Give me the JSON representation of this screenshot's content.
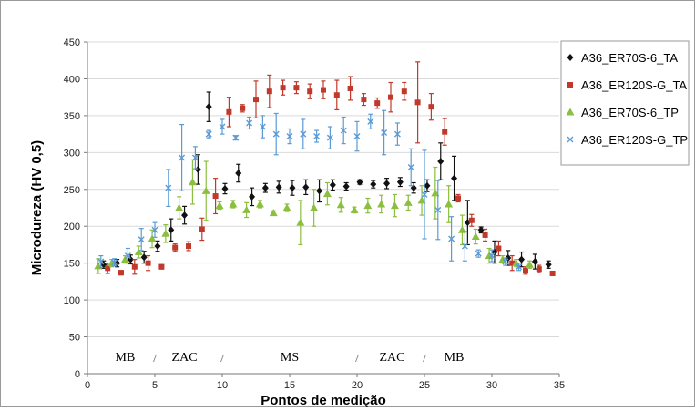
{
  "chart_data": {
    "type": "scatter",
    "title": "",
    "xlabel": "Pontos de medição",
    "ylabel": "Microdureza (HV 0,5)",
    "xlim": [
      0,
      35
    ],
    "ylim": [
      0,
      450
    ],
    "xticks": [
      0,
      5,
      10,
      15,
      20,
      25,
      30,
      35
    ],
    "yticks": [
      0,
      50,
      100,
      150,
      200,
      250,
      300,
      350,
      400,
      450
    ],
    "grid": "horizontal",
    "legend_position": "right",
    "regions": [
      {
        "label": "MB",
        "x": 2.8
      },
      {
        "label": "ZAC",
        "x": 7.2
      },
      {
        "label": "MS",
        "x": 15.0
      },
      {
        "label": "ZAC",
        "x": 22.6
      },
      {
        "label": "MB",
        "x": 27.2
      }
    ],
    "region_separators": [
      5,
      10,
      20,
      25
    ],
    "series": [
      {
        "name": "A36_ER70S-6_TA",
        "color": "#111111",
        "marker": "diamond",
        "points": [
          [
            1.2,
            148,
            5
          ],
          [
            2.2,
            150,
            5
          ],
          [
            3.2,
            155,
            6
          ],
          [
            4.2,
            158,
            8
          ],
          [
            5.2,
            173,
            7
          ],
          [
            6.2,
            195,
            15
          ],
          [
            7.2,
            215,
            12
          ],
          [
            8.2,
            277,
            20
          ],
          [
            9.0,
            362,
            20
          ],
          [
            10.2,
            251,
            7
          ],
          [
            11.2,
            272,
            12
          ],
          [
            12.2,
            240,
            12
          ],
          [
            13.2,
            252,
            6
          ],
          [
            14.2,
            253,
            8
          ],
          [
            15.2,
            252,
            10
          ],
          [
            16.2,
            253,
            10
          ],
          [
            17.2,
            248,
            15
          ],
          [
            18.2,
            256,
            7
          ],
          [
            19.2,
            254,
            5
          ],
          [
            20.2,
            260,
            3
          ],
          [
            21.2,
            257,
            5
          ],
          [
            22.2,
            258,
            7
          ],
          [
            23.2,
            260,
            6
          ],
          [
            24.2,
            252,
            7
          ],
          [
            25.2,
            255,
            8
          ],
          [
            26.2,
            288,
            25
          ],
          [
            27.2,
            265,
            30
          ],
          [
            28.2,
            205,
            30
          ],
          [
            29.2,
            195,
            4
          ],
          [
            30.2,
            165,
            15
          ],
          [
            31.2,
            157,
            10
          ],
          [
            32.2,
            155,
            10
          ],
          [
            33.2,
            152,
            10
          ],
          [
            34.2,
            148,
            5
          ]
        ]
      },
      {
        "name": "A36_ER120S-G_TA",
        "color": "#c0392b",
        "marker": "square",
        "points": [
          [
            1.5,
            143,
            7
          ],
          [
            2.5,
            137,
            3
          ],
          [
            3.5,
            145,
            10
          ],
          [
            4.5,
            150,
            10
          ],
          [
            5.5,
            145,
            3
          ],
          [
            6.5,
            171,
            5
          ],
          [
            7.5,
            173,
            6
          ],
          [
            8.5,
            196,
            15
          ],
          [
            9.5,
            241,
            24
          ],
          [
            10.5,
            355,
            20
          ],
          [
            11.5,
            360,
            5
          ],
          [
            12.5,
            372,
            25
          ],
          [
            13.5,
            383,
            22
          ],
          [
            14.5,
            388,
            10
          ],
          [
            15.5,
            388,
            8
          ],
          [
            16.5,
            383,
            10
          ],
          [
            17.5,
            385,
            12
          ],
          [
            18.5,
            378,
            20
          ],
          [
            19.5,
            387,
            16
          ],
          [
            20.5,
            372,
            8
          ],
          [
            21.5,
            367,
            7
          ],
          [
            22.5,
            375,
            20
          ],
          [
            23.5,
            383,
            12
          ],
          [
            24.5,
            368,
            55
          ],
          [
            25.5,
            362,
            18
          ],
          [
            26.5,
            328,
            18
          ],
          [
            27.5,
            238,
            5
          ],
          [
            28.5,
            208,
            8
          ],
          [
            29.5,
            188,
            8
          ],
          [
            30.5,
            170,
            10
          ],
          [
            31.5,
            150,
            10
          ],
          [
            32.5,
            140,
            5
          ],
          [
            33.5,
            142,
            5
          ],
          [
            34.5,
            136,
            3
          ]
        ]
      },
      {
        "name": "A36_ER70S-6_TP",
        "color": "#8bbf3f",
        "marker": "triangle",
        "points": [
          [
            0.8,
            146,
            10
          ],
          [
            1.8,
            150,
            5
          ],
          [
            2.8,
            155,
            5
          ],
          [
            3.8,
            165,
            8
          ],
          [
            4.8,
            183,
            12
          ],
          [
            5.8,
            190,
            12
          ],
          [
            6.8,
            225,
            15
          ],
          [
            7.8,
            260,
            30
          ],
          [
            8.8,
            248,
            40
          ],
          [
            9.8,
            228,
            5
          ],
          [
            10.8,
            230,
            5
          ],
          [
            11.8,
            222,
            10
          ],
          [
            12.8,
            230,
            5
          ],
          [
            13.8,
            218,
            3
          ],
          [
            14.8,
            225,
            5
          ],
          [
            15.8,
            205,
            30
          ],
          [
            16.8,
            225,
            25
          ],
          [
            17.8,
            244,
            15
          ],
          [
            18.8,
            229,
            10
          ],
          [
            19.8,
            222,
            4
          ],
          [
            20.8,
            228,
            10
          ],
          [
            21.8,
            230,
            12
          ],
          [
            22.8,
            228,
            15
          ],
          [
            23.8,
            232,
            10
          ],
          [
            24.8,
            235,
            20
          ],
          [
            25.8,
            245,
            35
          ],
          [
            26.8,
            230,
            25
          ],
          [
            27.8,
            195,
            20
          ],
          [
            28.8,
            186,
            10
          ],
          [
            29.8,
            160,
            10
          ],
          [
            30.8,
            155,
            5
          ],
          [
            31.8,
            150,
            5
          ],
          [
            32.8,
            148,
            5
          ]
        ]
      },
      {
        "name": "A36_ER120S-G_TP",
        "color": "#5b9bd5",
        "marker": "x",
        "points": [
          [
            1.0,
            152,
            8
          ],
          [
            2.0,
            151,
            5
          ],
          [
            3.0,
            160,
            10
          ],
          [
            4.0,
            182,
            15
          ],
          [
            5.0,
            195,
            10
          ],
          [
            6.0,
            252,
            25
          ],
          [
            7.0,
            293,
            45
          ],
          [
            8.0,
            293,
            15
          ],
          [
            9.0,
            325,
            5
          ],
          [
            10.0,
            335,
            10
          ],
          [
            11.0,
            320,
            3
          ],
          [
            12.0,
            340,
            8
          ],
          [
            13.0,
            335,
            15
          ],
          [
            14.0,
            325,
            28
          ],
          [
            15.0,
            322,
            10
          ],
          [
            16.0,
            325,
            20
          ],
          [
            17.0,
            322,
            8
          ],
          [
            18.0,
            320,
            15
          ],
          [
            19.0,
            330,
            18
          ],
          [
            20.0,
            322,
            20
          ],
          [
            21.0,
            342,
            10
          ],
          [
            22.0,
            327,
            30
          ],
          [
            23.0,
            325,
            15
          ],
          [
            24.0,
            280,
            25
          ],
          [
            25.0,
            243,
            60
          ],
          [
            26.0,
            222,
            40
          ],
          [
            27.0,
            183,
            30
          ],
          [
            28.0,
            173,
            20
          ],
          [
            29.0,
            163,
            5
          ],
          [
            30.0,
            160,
            8
          ],
          [
            31.0,
            152,
            5
          ],
          [
            32.0,
            145,
            5
          ]
        ]
      }
    ]
  }
}
